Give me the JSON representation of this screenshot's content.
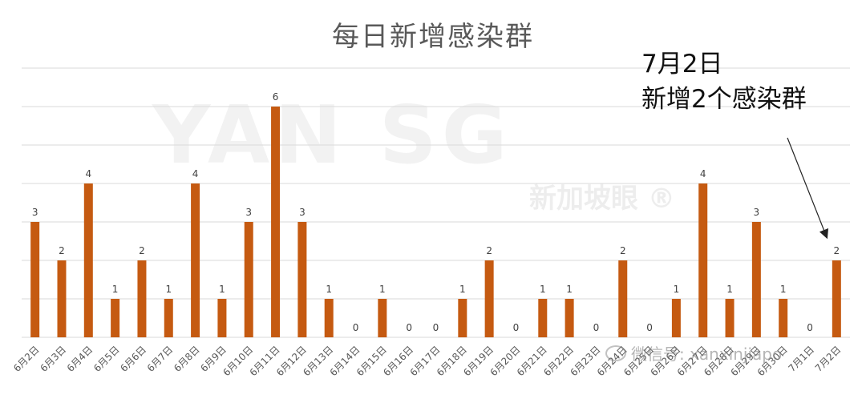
{
  "chart_data": {
    "type": "bar",
    "title": "每日新增感染群",
    "categories": [
      "6月2日",
      "6月3日",
      "6月4日",
      "6月5日",
      "6月6日",
      "6月7日",
      "6月8日",
      "6月9日",
      "6月10日",
      "6月11日",
      "6月12日",
      "6月13日",
      "6月14日",
      "6月15日",
      "6月16日",
      "6月17日",
      "6月18日",
      "6月19日",
      "6月20日",
      "6月21日",
      "6月22日",
      "6月23日",
      "6月24日",
      "6月25日",
      "6月26日",
      "6月27日",
      "6月28日",
      "6月29日",
      "6月30日",
      "7月1日",
      "7月2日"
    ],
    "values": [
      3,
      2,
      4,
      1,
      2,
      1,
      4,
      1,
      3,
      6,
      3,
      1,
      0,
      1,
      0,
      0,
      1,
      2,
      0,
      1,
      1,
      0,
      2,
      0,
      1,
      4,
      1,
      3,
      1,
      0,
      2
    ],
    "ylim": [
      0,
      7
    ],
    "gridlines": true,
    "bar_color": "#C55A11",
    "grid_color": "#D9D9D9",
    "annotation": {
      "line1": "7月2日",
      "line2": "新增2个感染群"
    }
  },
  "watermark": {
    "logo_text": "YAN SG",
    "sub_text": "新加坡眼 ®",
    "wechat_text": "微信号: xanxinjiapo"
  }
}
